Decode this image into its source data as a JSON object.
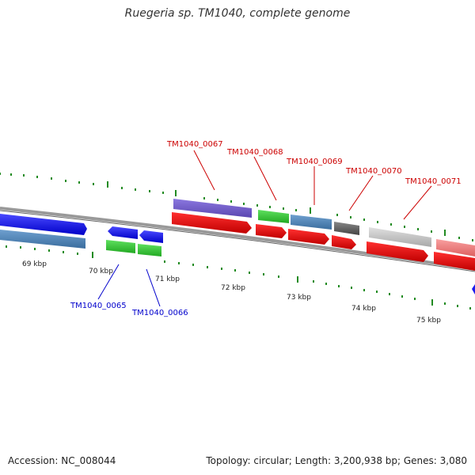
{
  "title": "Ruegeria sp. TM1040, complete genome",
  "footer": {
    "accession": "Accession: NC_008044",
    "summary": "Topology: circular; Length: 3,200,938 bp; Genes: 3,080"
  },
  "scale_labels": [
    "69 kbp",
    "70 kbp",
    "71 kbp",
    "72 kbp",
    "73 kbp",
    "74 kbp",
    "75 kbp"
  ],
  "gene_labels": {
    "TM1040_0065": "TM1040_0065",
    "TM1040_0066": "TM1040_0066",
    "TM1040_0067": "TM1040_0067",
    "TM1040_0068": "TM1040_0068",
    "TM1040_0069": "TM1040_0069",
    "TM1040_0070": "TM1040_0070",
    "TM1040_0071": "TM1040_0071"
  },
  "colors": {
    "label_forward": "#cc0000",
    "label_reverse": "#0000cc",
    "tick": "#228b22",
    "backbone": "#888888"
  }
}
